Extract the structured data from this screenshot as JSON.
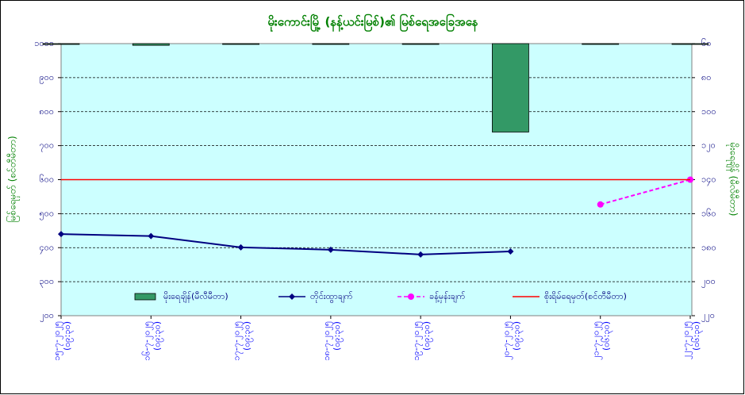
{
  "chart_data": {
    "type": "combo",
    "title": "မိုးကောင်းမြို့ (နန့်ယင်းမြစ်)၏ မြစ်ရေအခြေအနေ",
    "ylabel": "မြစ်ရေမှတ် (စင်တီမီတာ)",
    "y2label": "မိုးရေချိန် (မီလီမီတာ)",
    "categories": [
      "၁၅-၇-၂၀၂၅",
      "၁၆-၇-၂၀၂၅",
      "၁၇-၇-၂၀၂၅",
      "၁၈-၇-၂၀၂၅",
      "၁၉-၇-၂၀၂၅",
      "၂၀-၇-၂၀၂၅",
      "၂၁-၇-၂၀၂၅",
      "၂၂-၇-၂၀၂၅"
    ],
    "category_times": [
      "(၀၉:၃၀)",
      "(၀၉:၃၀)",
      "(၀၉:၃၀)",
      "(၀၉:၃၀)",
      "(၀၉:၃၀)",
      "(၀၉:၃၀)",
      "(၀၆:၃၀)",
      "(၀၆:၃၀)"
    ],
    "ylim": [
      200,
      1000
    ],
    "yticks": [
      {
        "value": 200,
        "label": "၂၀၀"
      },
      {
        "value": 300,
        "label": "၃၀၀"
      },
      {
        "value": 400,
        "label": "၄၀၀"
      },
      {
        "value": 500,
        "label": "၅၀၀"
      },
      {
        "value": 600,
        "label": "၆၀၀"
      },
      {
        "value": 700,
        "label": "၇၀၀"
      },
      {
        "value": 800,
        "label": "၈၀၀"
      },
      {
        "value": 900,
        "label": "၉၀၀"
      },
      {
        "value": 1000,
        "label": "၁၀၀၀"
      }
    ],
    "y2lim": [
      60,
      220
    ],
    "y2_reversed": true,
    "y2ticks": [
      {
        "value": 60,
        "label": "၆၀"
      },
      {
        "value": 80,
        "label": "၈၀"
      },
      {
        "value": 100,
        "label": "၁၀၀"
      },
      {
        "value": 120,
        "label": "၁၂၀"
      },
      {
        "value": 140,
        "label": "၁၄၀"
      },
      {
        "value": 160,
        "label": "၁၆၀"
      },
      {
        "value": 180,
        "label": "၁၈၀"
      },
      {
        "value": 200,
        "label": "၂၀၀"
      },
      {
        "value": 220,
        "label": "၂၂၀"
      }
    ],
    "grid": true,
    "series": [
      {
        "name": "မိုးရေချိန်(မီလီမီတာ)",
        "kind": "bar",
        "axis": "y2",
        "color": "#339966",
        "values": [
          60,
          61,
          60,
          60,
          60,
          112,
          60,
          60
        ]
      },
      {
        "name": "တိုင်းထွာချက်",
        "kind": "line",
        "color": "#000080",
        "marker": "diamond",
        "values": [
          440,
          434,
          401,
          394,
          380,
          389,
          null,
          null
        ]
      },
      {
        "name": "ခန့်မှန်းချက်",
        "kind": "line",
        "color": "#ff00ff",
        "dashed": true,
        "marker": "circle",
        "values": [
          null,
          null,
          null,
          null,
          null,
          null,
          527,
          600
        ]
      },
      {
        "name": "စိုးရိမ်ရေမှတ်(စင်တီမီတာ)",
        "kind": "line",
        "color": "#ff0000",
        "values": [
          600,
          600,
          600,
          600,
          600,
          600,
          600,
          600
        ]
      }
    ]
  }
}
